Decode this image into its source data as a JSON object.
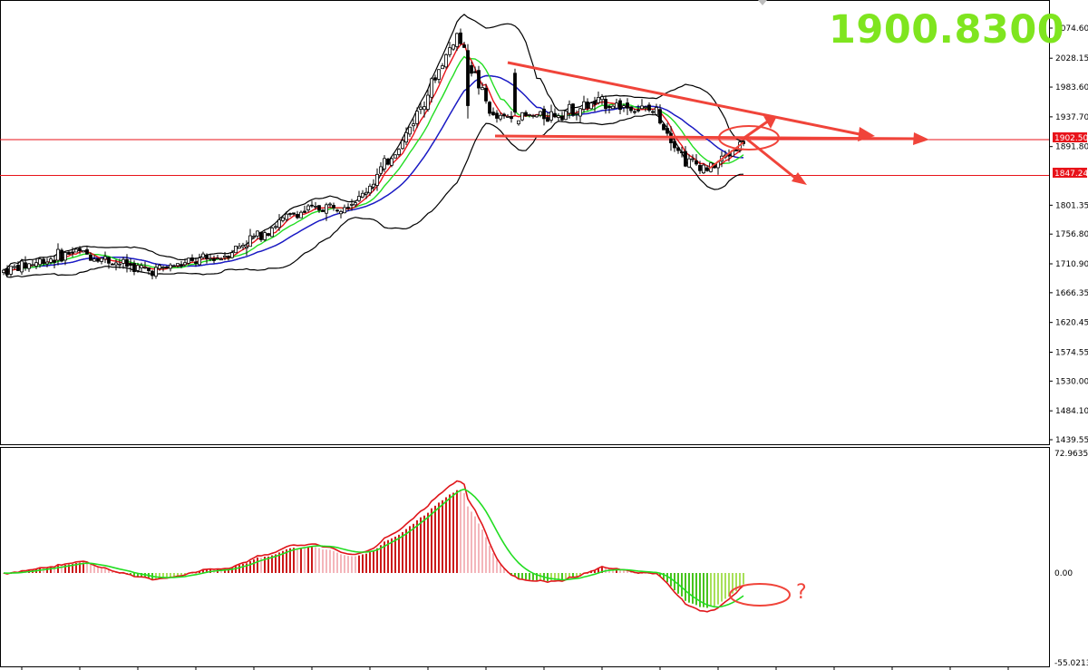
{
  "ticker": {
    "value": "1900.8300",
    "color": "#7fe51f"
  },
  "annotation": {
    "question": "?",
    "color": "#f0443a"
  },
  "colors": {
    "bull_fill": "#ffffff",
    "bear_fill": "#000000",
    "wick": "#000000",
    "ma_fast": "#e8131a",
    "ma_mid": "#22dd22",
    "ma_slow": "#1a1acc",
    "bollinger": "#000000",
    "hline": "#e8131a",
    "trend": "#f0443a",
    "macd_line": "#e0151a",
    "signal_line": "#22dd22",
    "hist_up_strong": "#cc1a1a",
    "hist_up_weak": "#f4b6bb",
    "hist_dn_strong": "#48c41e",
    "hist_dn_weak": "#a8e05a"
  },
  "chart_data": [
    {
      "type": "candlestick",
      "title": "",
      "price_axis": {
        "ticks": [
          "2074.60",
          "2028.15",
          "1983.60",
          "1937.70",
          "1891.80",
          "1801.35",
          "1756.80",
          "1710.90",
          "1666.35",
          "1620.45",
          "1574.55",
          "1530.00",
          "1484.10",
          "1439.55"
        ],
        "range": [
          1439.55,
          2099.0
        ]
      },
      "horizontal_levels": [
        {
          "label": "1902.50",
          "value": 1902.5
        },
        {
          "label": "1847.24",
          "value": 1847.24
        }
      ],
      "indicators": [
        "fast moving average (red)",
        "medium moving average (green)",
        "slow moving average (blue)",
        "Bollinger Bands (black)"
      ],
      "key_points": [
        {
          "bar": 0,
          "close": 1700
        },
        {
          "bar": 20,
          "close": 1730
        },
        {
          "bar": 40,
          "close": 1700
        },
        {
          "bar": 60,
          "close": 1722
        },
        {
          "bar": 80,
          "close": 1788
        },
        {
          "bar": 98,
          "close": 1810
        },
        {
          "bar": 110,
          "close": 1900
        },
        {
          "bar": 125,
          "close": 2065
        },
        {
          "bar": 135,
          "close": 1935
        },
        {
          "bar": 150,
          "close": 1940
        },
        {
          "bar": 165,
          "close": 1960
        },
        {
          "bar": 180,
          "close": 1945
        },
        {
          "bar": 188,
          "close": 1870
        },
        {
          "bar": 195,
          "close": 1858
        },
        {
          "bar": 204,
          "close": 1900
        }
      ]
    },
    {
      "type": "bar",
      "title": "",
      "indicator": "MACD",
      "axis_ticks": [
        "72.9635",
        "0.00",
        "-55.0213"
      ],
      "range": [
        -55.0213,
        72.9635
      ]
    }
  ]
}
